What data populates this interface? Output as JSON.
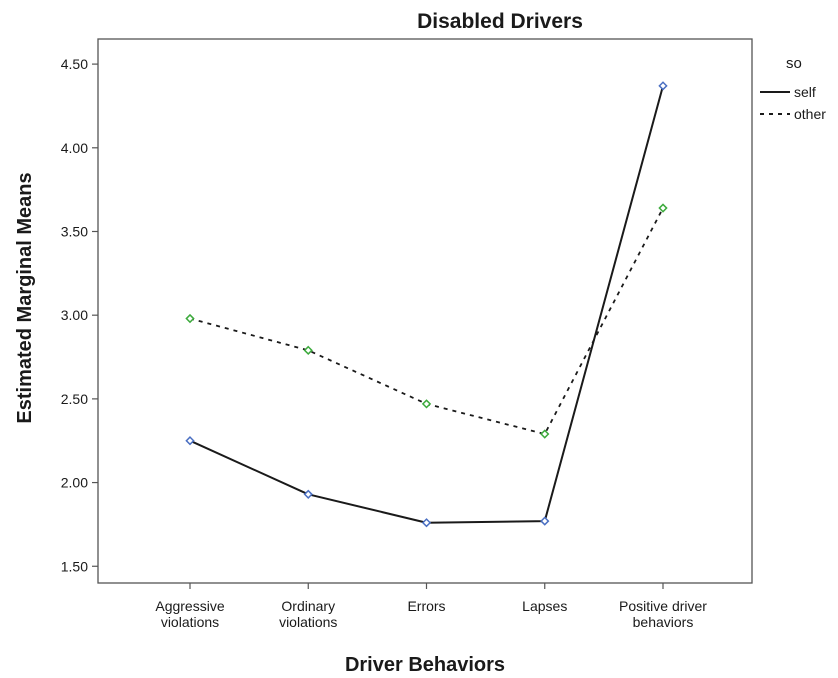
{
  "chart_data": {
    "type": "line",
    "title": "Disabled Drivers",
    "xlabel": "Driver Behaviors",
    "ylabel": "Estimated Marginal Means",
    "categories": [
      [
        "Aggressive",
        "violations"
      ],
      [
        "Ordinary",
        "violations"
      ],
      [
        "Errors"
      ],
      [
        "Lapses"
      ],
      [
        "Positive driver",
        "behaviors"
      ]
    ],
    "ylim": [
      1.4,
      4.65
    ],
    "yticks": [
      "1.50",
      "2.00",
      "2.50",
      "3.00",
      "3.50",
      "4.00",
      "4.50"
    ],
    "grid": false,
    "legend": {
      "title": "so",
      "placement": "right"
    },
    "series": [
      {
        "name": "self",
        "line_style": "solid",
        "line_color": "#1a1a1a",
        "marker_color": "#4a6fc2",
        "values": [
          2.25,
          1.93,
          1.76,
          1.77,
          4.37
        ]
      },
      {
        "name": "other",
        "line_style": "dashed",
        "line_color": "#1a1a1a",
        "marker_color": "#3caa3c",
        "values": [
          2.98,
          2.79,
          2.47,
          2.29,
          3.64
        ]
      }
    ]
  }
}
